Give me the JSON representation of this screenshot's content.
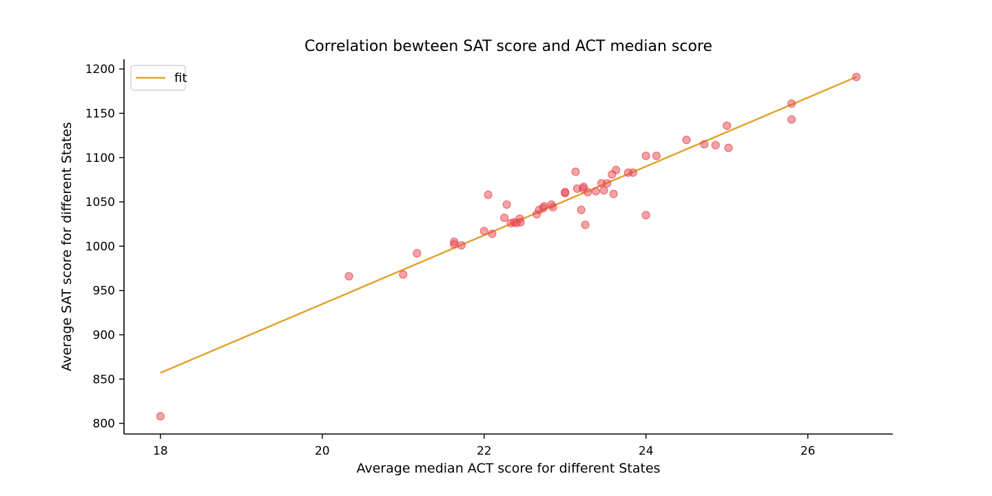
{
  "chart_data": {
    "type": "scatter",
    "title": "Correlation bewteen SAT score and ACT median score",
    "xlabel": "Average median ACT score for different States",
    "ylabel": "Average SAT score for different States",
    "xlim": [
      17.55,
      27.05
    ],
    "ylim": [
      788,
      1211
    ],
    "xticks": [
      18,
      20,
      22,
      24,
      26
    ],
    "yticks": [
      800,
      850,
      900,
      950,
      1000,
      1050,
      1100,
      1150,
      1200
    ],
    "legend": {
      "position": "top-left",
      "entries": [
        "fit"
      ]
    },
    "grid": false,
    "colors": {
      "points": "#e8464f",
      "fit": "#e3a12f",
      "axis": "#000000"
    },
    "series": [
      {
        "kind": "scatter",
        "points": [
          [
            18.0,
            808
          ],
          [
            20.33,
            966
          ],
          [
            21.0,
            968
          ],
          [
            21.17,
            992
          ],
          [
            21.63,
            1002
          ],
          [
            21.63,
            1005
          ],
          [
            21.72,
            1001
          ],
          [
            22.0,
            1017
          ],
          [
            22.05,
            1058
          ],
          [
            22.1,
            1014
          ],
          [
            22.25,
            1032
          ],
          [
            22.28,
            1047
          ],
          [
            22.33,
            1026
          ],
          [
            22.37,
            1027
          ],
          [
            22.4,
            1026
          ],
          [
            22.44,
            1031
          ],
          [
            22.45,
            1027
          ],
          [
            22.65,
            1036
          ],
          [
            22.68,
            1041
          ],
          [
            22.73,
            1043
          ],
          [
            22.74,
            1045
          ],
          [
            22.83,
            1047
          ],
          [
            22.85,
            1044
          ],
          [
            23.0,
            1060
          ],
          [
            23.0,
            1061
          ],
          [
            23.13,
            1084
          ],
          [
            23.15,
            1065
          ],
          [
            23.2,
            1041
          ],
          [
            23.22,
            1065
          ],
          [
            23.23,
            1067
          ],
          [
            23.25,
            1024
          ],
          [
            23.28,
            1061
          ],
          [
            23.38,
            1062
          ],
          [
            23.45,
            1071
          ],
          [
            23.48,
            1063
          ],
          [
            23.52,
            1071
          ],
          [
            23.58,
            1081
          ],
          [
            23.6,
            1059
          ],
          [
            23.63,
            1086
          ],
          [
            23.78,
            1083
          ],
          [
            23.84,
            1083
          ],
          [
            24.0,
            1102
          ],
          [
            24.0,
            1035
          ],
          [
            24.13,
            1102
          ],
          [
            24.5,
            1120
          ],
          [
            24.72,
            1115
          ],
          [
            24.86,
            1114
          ],
          [
            25.0,
            1136
          ],
          [
            25.02,
            1111
          ],
          [
            25.8,
            1161
          ],
          [
            25.8,
            1143
          ],
          [
            26.6,
            1191
          ]
        ]
      },
      {
        "kind": "line",
        "name": "fit",
        "points": [
          [
            18.0,
            857
          ],
          [
            26.6,
            1191
          ]
        ]
      }
    ]
  }
}
